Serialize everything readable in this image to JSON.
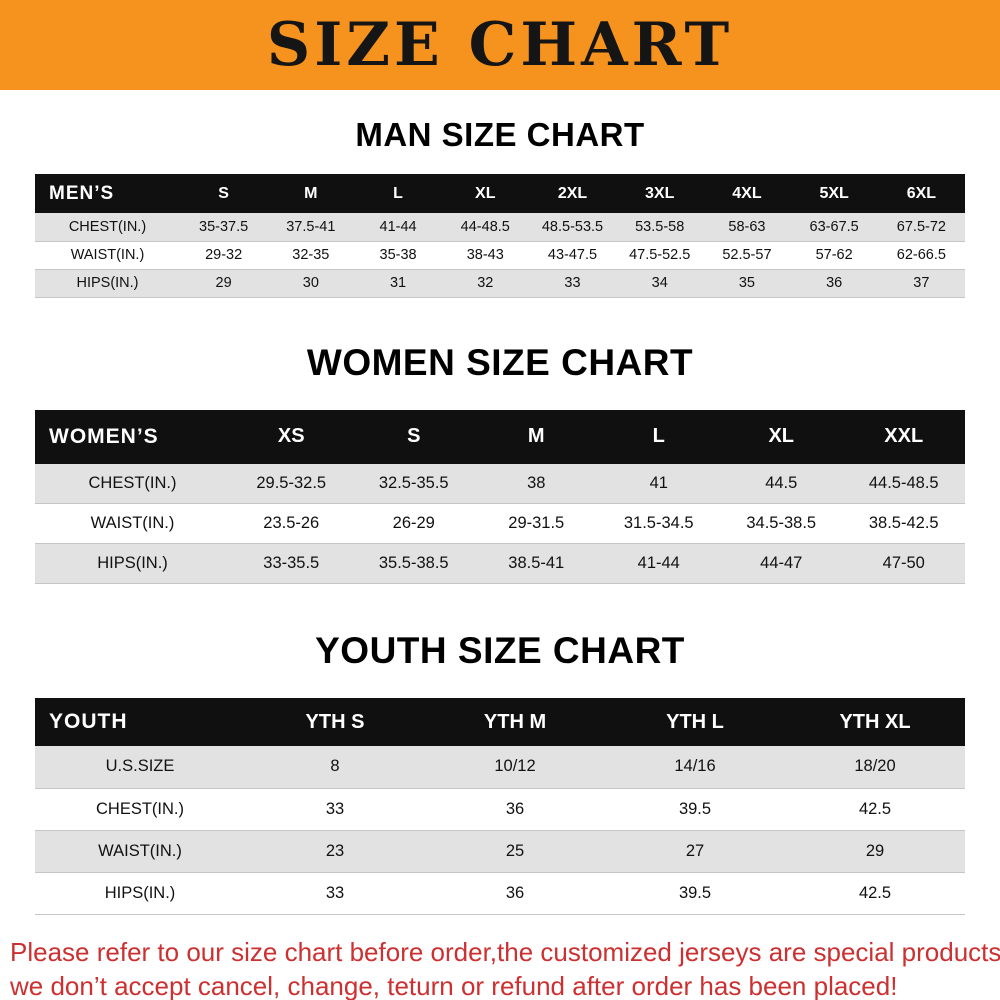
{
  "banner": {
    "title": "SIZE CHART",
    "bg_color": "#F6921E"
  },
  "sections": [
    {
      "heading": "MAN SIZE CHART",
      "table": {
        "header_label": "MEN’S",
        "columns": [
          "S",
          "M",
          "L",
          "XL",
          "2XL",
          "3XL",
          "4XL",
          "5XL",
          "6XL"
        ],
        "rows": [
          {
            "label": "CHEST(IN.)",
            "values": [
              "35-37.5",
              "37.5-41",
              "41-44",
              "44-48.5",
              "48.5-53.5",
              "53.5-58",
              "58-63",
              "63-67.5",
              "67.5-72"
            ]
          },
          {
            "label": "WAIST(IN.)",
            "values": [
              "29-32",
              "32-35",
              "35-38",
              "38-43",
              "43-47.5",
              "47.5-52.5",
              "52.5-57",
              "57-62",
              "62-66.5"
            ]
          },
          {
            "label": "HIPS(IN.)",
            "values": [
              "29",
              "30",
              "31",
              "32",
              "33",
              "34",
              "35",
              "36",
              "37"
            ]
          }
        ]
      }
    },
    {
      "heading": "WOMEN SIZE CHART",
      "table": {
        "header_label": "WOMEN’S",
        "columns": [
          "XS",
          "S",
          "M",
          "L",
          "XL",
          "XXL"
        ],
        "rows": [
          {
            "label": "CHEST(IN.)",
            "values": [
              "29.5-32.5",
              "32.5-35.5",
              "38",
              "41",
              "44.5",
              "44.5-48.5"
            ]
          },
          {
            "label": "WAIST(IN.)",
            "values": [
              "23.5-26",
              "26-29",
              "29-31.5",
              "31.5-34.5",
              "34.5-38.5",
              "38.5-42.5"
            ]
          },
          {
            "label": "HIPS(IN.)",
            "values": [
              "33-35.5",
              "35.5-38.5",
              "38.5-41",
              "41-44",
              "44-47",
              "47-50"
            ]
          }
        ]
      }
    },
    {
      "heading": "YOUTH SIZE CHART",
      "table": {
        "header_label": "YOUTH",
        "columns": [
          "YTH S",
          "YTH M",
          "YTH L",
          "YTH XL"
        ],
        "rows": [
          {
            "label": "U.S.SIZE",
            "values": [
              "8",
              "10/12",
              "14/16",
              "18/20"
            ]
          },
          {
            "label": "CHEST(IN.)",
            "values": [
              "33",
              "36",
              "39.5",
              "42.5"
            ]
          },
          {
            "label": "WAIST(IN.)",
            "values": [
              "23",
              "25",
              "27",
              "29"
            ]
          },
          {
            "label": "HIPS(IN.)",
            "values": [
              "33",
              "36",
              "39.5",
              "42.5"
            ]
          }
        ]
      }
    }
  ],
  "footer": {
    "line1": "Please refer to our size chart before order,the customized jerseys are special products,",
    "line2": "we don’t accept cancel, change, teturn or refund after order has been placed!",
    "text_color": "#cc3030"
  }
}
